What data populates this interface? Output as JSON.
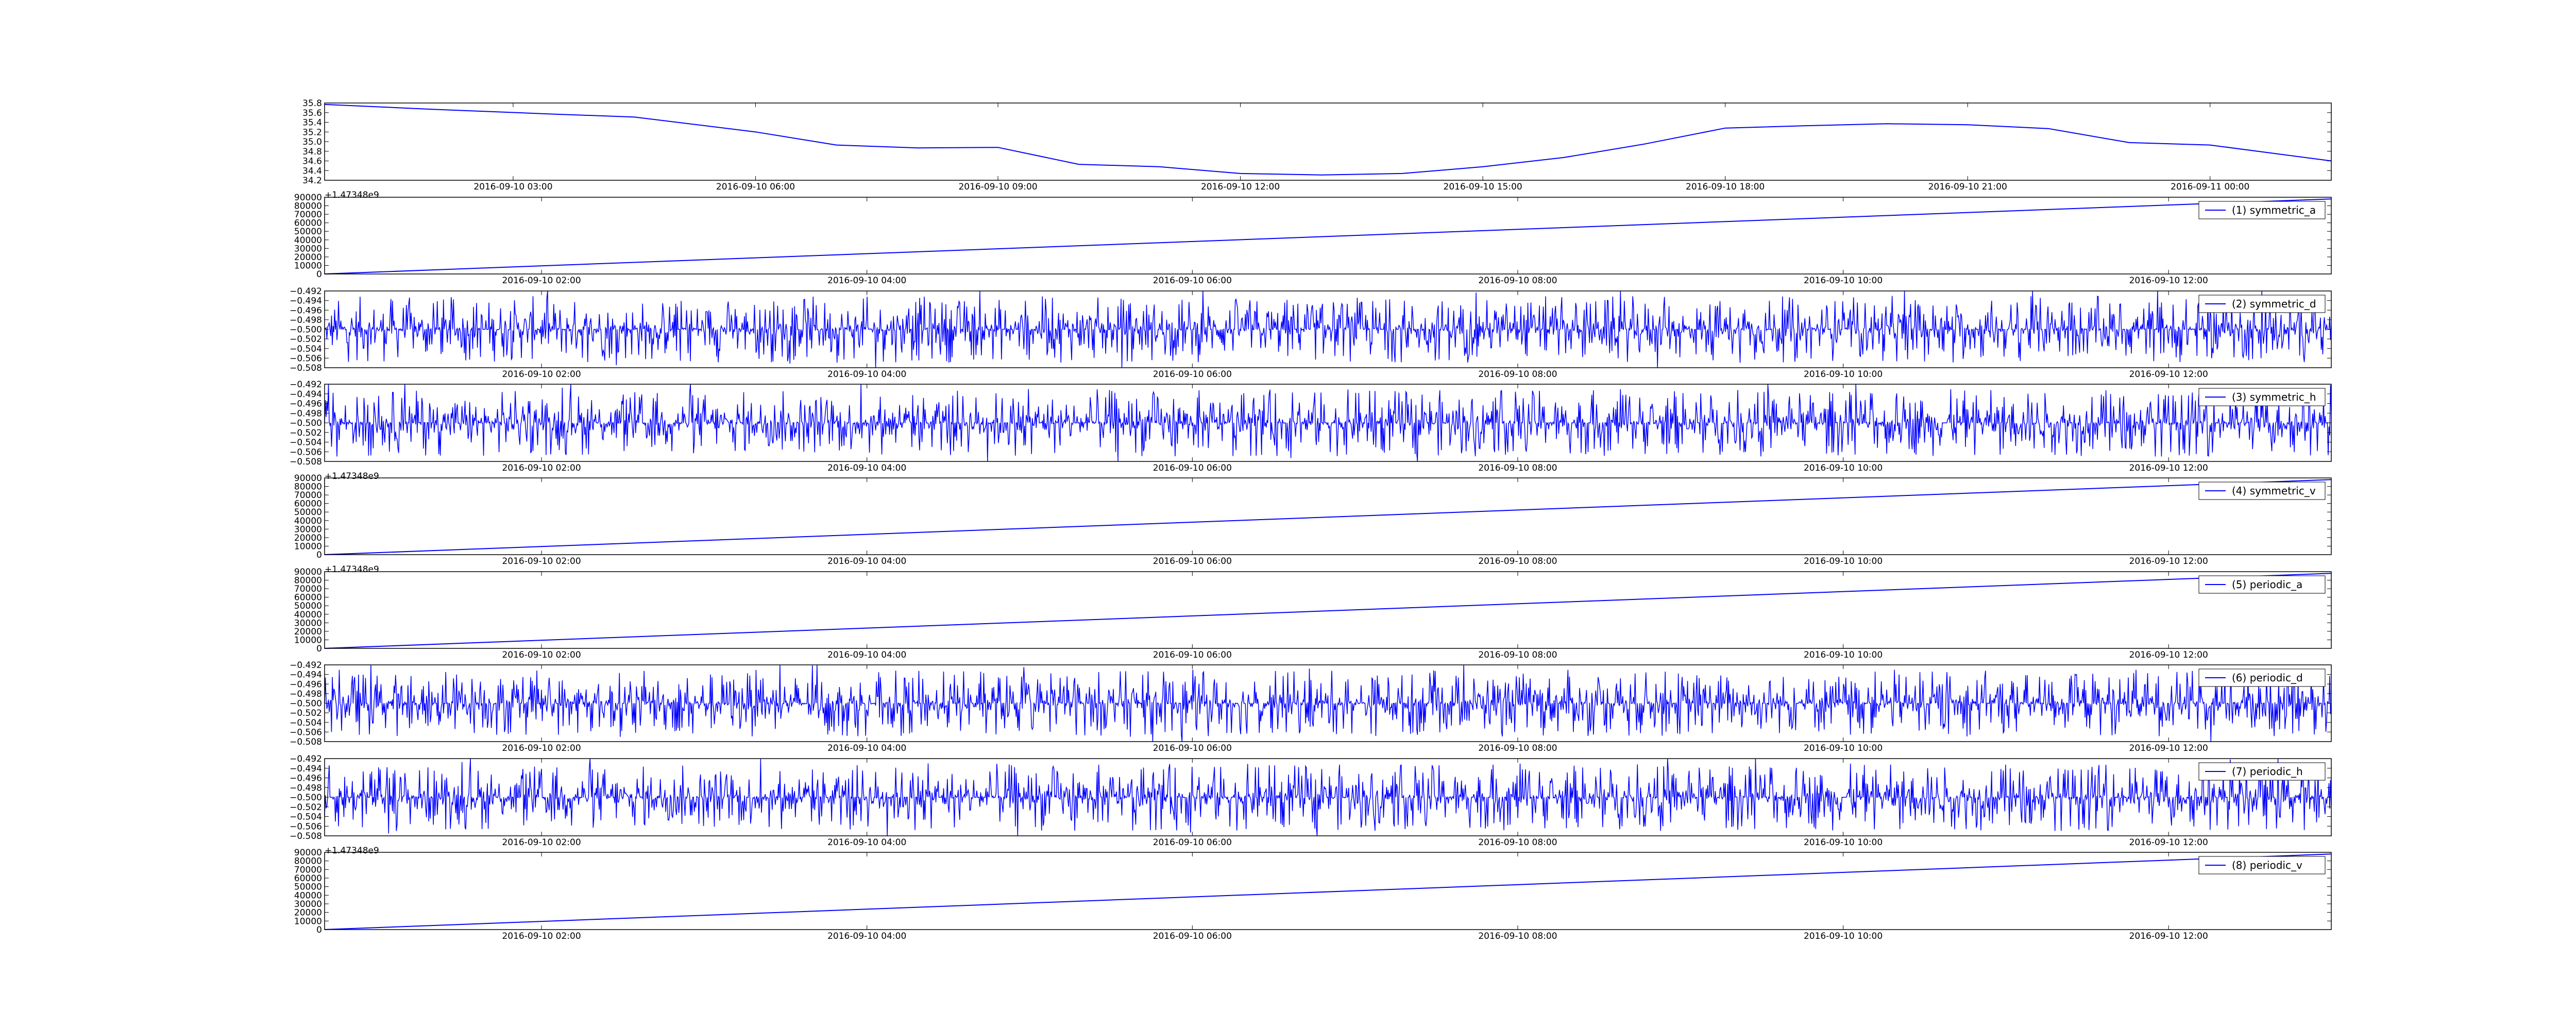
{
  "chart_data": [
    {
      "type": "line",
      "series": [
        {
          "values_desc": "smooth",
          "x_start": "2016-09-10 00:40",
          "x_end": "2016-09-11 01:30",
          "x": [
            "2016-09-10 00:40",
            "2016-09-10 02:00",
            "2016-09-10 03:30",
            "2016-09-10 04:30",
            "2016-09-10 06:00",
            "2016-09-10 07:00",
            "2016-09-10 08:00",
            "2016-09-10 09:00",
            "2016-09-10 10:00",
            "2016-09-10 11:00",
            "2016-09-10 12:00",
            "2016-09-10 13:00",
            "2016-09-10 14:00",
            "2016-09-10 15:00",
            "2016-09-10 16:00",
            "2016-09-10 17:00",
            "2016-09-10 18:00",
            "2016-09-10 19:00",
            "2016-09-10 20:00",
            "2016-09-10 21:00",
            "2016-09-10 22:00",
            "2016-09-10 23:00",
            "2016-09-11 00:00",
            "2016-09-11 01:30"
          ],
          "y": [
            35.77,
            35.67,
            35.57,
            35.51,
            35.2,
            34.93,
            34.87,
            34.88,
            34.53,
            34.48,
            34.34,
            34.31,
            34.34,
            34.48,
            34.67,
            34.95,
            35.28,
            35.33,
            35.37,
            35.35,
            35.27,
            34.98,
            34.93,
            34.6
          ]
        }
      ],
      "ylim": [
        34.2,
        35.8
      ],
      "yticks": [
        "34.2",
        "34.4",
        "34.6",
        "34.8",
        "35.0",
        "35.2",
        "35.4",
        "35.6",
        "35.8"
      ],
      "xticks": [
        "2016-09-10 03:00",
        "2016-09-10 06:00",
        "2016-09-10 09:00",
        "2016-09-10 12:00",
        "2016-09-10 15:00",
        "2016-09-10 18:00",
        "2016-09-10 21:00",
        "2016-09-11 00:00"
      ],
      "offset_text": "+1.47348e9",
      "legend": ""
    },
    {
      "type": "line",
      "series": [
        {
          "name": "(1) symmetric_a",
          "x": [
            "2016-09-10 00:40",
            "2016-09-10 13:00"
          ],
          "y": [
            0,
            88000
          ]
        }
      ],
      "ylim": [
        0,
        90000
      ],
      "yticks": [
        "0",
        "10000",
        "20000",
        "30000",
        "40000",
        "50000",
        "60000",
        "70000",
        "80000",
        "90000"
      ],
      "xticks": [
        "2016-09-10 02:00",
        "2016-09-10 04:00",
        "2016-09-10 06:00",
        "2016-09-10 08:00",
        "2016-09-10 10:00",
        "2016-09-10 12:00"
      ],
      "offset_text": "",
      "legend": "(1) symmetric_a"
    },
    {
      "type": "line",
      "series": [
        {
          "name": "(2) symmetric_d",
          "center": -0.5,
          "noise_amplitude": 0.007
        }
      ],
      "ylim": [
        -0.508,
        -0.492
      ],
      "yticks": [
        "−0.508",
        "−0.506",
        "−0.504",
        "−0.502",
        "−0.500",
        "−0.498",
        "−0.496",
        "−0.494",
        "−0.492"
      ],
      "xticks": [
        "2016-09-10 02:00",
        "2016-09-10 04:00",
        "2016-09-10 06:00",
        "2016-09-10 08:00",
        "2016-09-10 10:00",
        "2016-09-10 12:00"
      ],
      "offset_text": "",
      "legend": "(2) symmetric_d"
    },
    {
      "type": "line",
      "series": [
        {
          "name": "(3) symmetric_h",
          "center": -0.5,
          "noise_amplitude": 0.007
        }
      ],
      "ylim": [
        -0.508,
        -0.492
      ],
      "yticks": [
        "−0.508",
        "−0.506",
        "−0.504",
        "−0.502",
        "−0.500",
        "−0.498",
        "−0.496",
        "−0.494",
        "−0.492"
      ],
      "xticks": [
        "2016-09-10 02:00",
        "2016-09-10 04:00",
        "2016-09-10 06:00",
        "2016-09-10 08:00",
        "2016-09-10 10:00",
        "2016-09-10 12:00"
      ],
      "offset_text": "+1.47348e9",
      "legend": "(3) symmetric_h"
    },
    {
      "type": "line",
      "series": [
        {
          "name": "(4) symmetric_v",
          "x": [
            "2016-09-10 00:40",
            "2016-09-10 13:00"
          ],
          "y": [
            0,
            88000
          ]
        }
      ],
      "ylim": [
        0,
        90000
      ],
      "yticks": [
        "0",
        "10000",
        "20000",
        "30000",
        "40000",
        "50000",
        "60000",
        "70000",
        "80000",
        "90000"
      ],
      "xticks": [
        "2016-09-10 02:00",
        "2016-09-10 04:00",
        "2016-09-10 06:00",
        "2016-09-10 08:00",
        "2016-09-10 10:00",
        "2016-09-10 12:00"
      ],
      "offset_text": "+1.47348e9",
      "legend": "(4) symmetric_v"
    },
    {
      "type": "line",
      "series": [
        {
          "name": "(5) periodic_a",
          "x": [
            "2016-09-10 00:40",
            "2016-09-10 13:00"
          ],
          "y": [
            0,
            88000
          ]
        }
      ],
      "ylim": [
        0,
        90000
      ],
      "yticks": [
        "0",
        "10000",
        "20000",
        "30000",
        "40000",
        "50000",
        "60000",
        "70000",
        "80000",
        "90000"
      ],
      "xticks": [
        "2016-09-10 02:00",
        "2016-09-10 04:00",
        "2016-09-10 06:00",
        "2016-09-10 08:00",
        "2016-09-10 10:00",
        "2016-09-10 12:00"
      ],
      "offset_text": "",
      "legend": "(5) periodic_a"
    },
    {
      "type": "line",
      "series": [
        {
          "name": "(6) periodic_d",
          "center": -0.5,
          "noise_amplitude": 0.007
        }
      ],
      "ylim": [
        -0.508,
        -0.492
      ],
      "yticks": [
        "−0.508",
        "−0.506",
        "−0.504",
        "−0.502",
        "−0.500",
        "−0.498",
        "−0.496",
        "−0.494",
        "−0.492"
      ],
      "xticks": [
        "2016-09-10 02:00",
        "2016-09-10 04:00",
        "2016-09-10 06:00",
        "2016-09-10 08:00",
        "2016-09-10 10:00",
        "2016-09-10 12:00"
      ],
      "offset_text": "",
      "legend": "(6) periodic_d"
    },
    {
      "type": "line",
      "series": [
        {
          "name": "(7) periodic_h",
          "center": -0.5,
          "noise_amplitude": 0.007
        }
      ],
      "ylim": [
        -0.508,
        -0.492
      ],
      "yticks": [
        "−0.508",
        "−0.506",
        "−0.504",
        "−0.502",
        "−0.500",
        "−0.498",
        "−0.496",
        "−0.494",
        "−0.492"
      ],
      "xticks": [
        "2016-09-10 02:00",
        "2016-09-10 04:00",
        "2016-09-10 06:00",
        "2016-09-10 08:00",
        "2016-09-10 10:00",
        "2016-09-10 12:00"
      ],
      "offset_text": "+1.47348e9",
      "legend": "(7) periodic_h"
    },
    {
      "type": "line",
      "series": [
        {
          "name": "(8) periodic_v",
          "x": [
            "2016-09-10 00:40",
            "2016-09-10 13:00"
          ],
          "y": [
            0,
            88000
          ]
        }
      ],
      "ylim": [
        0,
        90000
      ],
      "yticks": [
        "0",
        "10000",
        "20000",
        "30000",
        "40000",
        "50000",
        "60000",
        "70000",
        "80000",
        "90000"
      ],
      "xticks": [
        "2016-09-10 02:00",
        "2016-09-10 04:00",
        "2016-09-10 06:00",
        "2016-09-10 08:00",
        "2016-09-10 10:00",
        "2016-09-10 12:00"
      ],
      "offset_text": "",
      "legend": "(8) periodic_v"
    }
  ],
  "colors": {
    "line": "#0000ff",
    "axes": "#000000",
    "background": "#ffffff"
  }
}
